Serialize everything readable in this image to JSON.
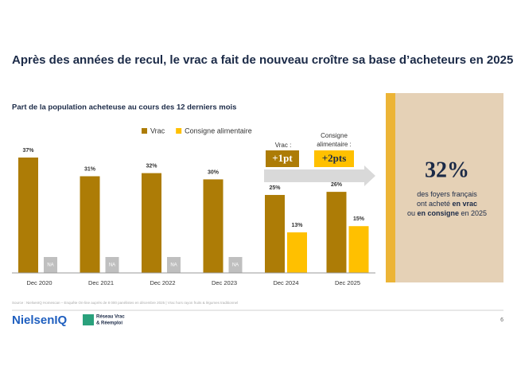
{
  "page_title": "Après des années de recul, le vrac a fait de nouveau croître sa base d’acheteurs en 2025",
  "chart_data": {
    "type": "bar",
    "title": "Part de la population acheteuse au cours des 12 derniers mois",
    "categories": [
      "Dec 2020",
      "Dec 2021",
      "Dec 2022",
      "Dec 2023",
      "Dec 2024",
      "Dec 2025"
    ],
    "series": [
      {
        "name": "Vrac",
        "color": "#ad7c06",
        "values": [
          37,
          31,
          32,
          30,
          25,
          26
        ],
        "value_labels": [
          "37%",
          "31%",
          "32%",
          "30%",
          "25%",
          "26%"
        ]
      },
      {
        "name": "Consigne alimentaire",
        "color": "#ffc000",
        "values": [
          null,
          null,
          null,
          null,
          13,
          15
        ],
        "value_labels": [
          "NA",
          "NA",
          "NA",
          "NA",
          "13%",
          "15%"
        ]
      }
    ],
    "legend": "top",
    "annotations": [
      {
        "label": "Vrac :",
        "change": "+1pt"
      },
      {
        "label": [
          "Consigne",
          "alimentaire :"
        ],
        "change": "+2pts"
      }
    ]
  },
  "panel": {
    "stat": "32%",
    "lines": [
      [
        "des foyers français"
      ],
      [
        "ont acheté ",
        "en vrac"
      ],
      [
        "ou ",
        "en consigne",
        " en 2025"
      ]
    ]
  },
  "footer": {
    "source": "Source : NielsenIQ Homescan – Enquête On-line auprès de 8 000 panélistes en décembre 2025 | Vrac hors rayon fruits & légumes traditionnel",
    "logo": "NielsenIQ",
    "partner": [
      "Réseau Vrac",
      "& Réemploi"
    ],
    "page": "6"
  }
}
